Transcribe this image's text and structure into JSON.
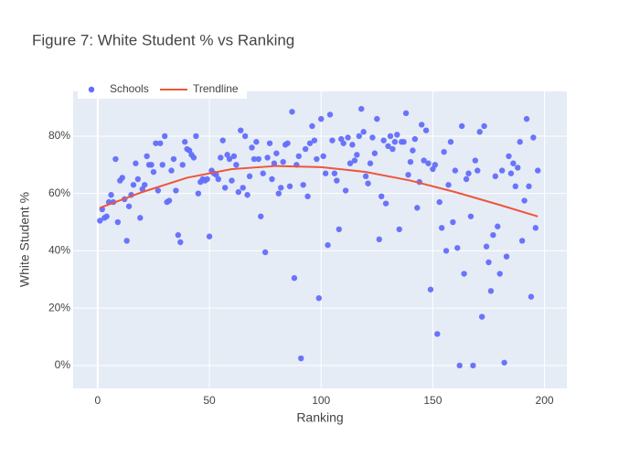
{
  "chart_data": {
    "type": "scatter",
    "title": "Figure 7: White Student % vs Ranking",
    "xlabel": "Ranking",
    "ylabel": "White Student %",
    "xlim": [
      -11,
      210
    ],
    "ylim": [
      -8,
      95.6
    ],
    "xticks": [
      0,
      50,
      100,
      150,
      200
    ],
    "yticks": [
      {
        "value": 0,
        "label": "0%"
      },
      {
        "value": 20,
        "label": "20%"
      },
      {
        "value": 40,
        "label": "40%"
      },
      {
        "value": 60,
        "label": "60%"
      },
      {
        "value": 80,
        "label": "80%"
      }
    ],
    "grid": true,
    "legend": "top-left",
    "series": [
      {
        "name": "Schools",
        "type": "scatter",
        "color": "#636efa",
        "x": [
          1,
          2,
          3,
          4,
          5,
          6,
          7,
          8,
          9,
          10,
          11,
          12,
          13,
          14,
          15,
          16,
          17,
          18,
          19,
          20,
          21,
          22,
          23,
          24,
          25,
          26,
          27,
          28,
          29,
          30,
          31,
          32,
          33,
          34,
          35,
          36,
          37,
          38,
          39,
          40,
          41,
          42,
          43,
          44,
          45,
          46,
          47,
          48,
          49,
          50,
          51,
          52,
          53,
          54,
          55,
          56,
          57,
          58,
          59,
          60,
          61,
          62,
          63,
          64,
          65,
          66,
          67,
          68,
          69,
          70,
          71,
          72,
          73,
          74,
          75,
          76,
          77,
          78,
          79,
          80,
          81,
          82,
          83,
          84,
          85,
          86,
          87,
          88,
          89,
          90,
          91,
          92,
          93,
          94,
          95,
          96,
          97,
          98,
          99,
          100,
          101,
          102,
          103,
          104,
          105,
          106,
          107,
          108,
          109,
          110,
          111,
          112,
          113,
          114,
          115,
          116,
          117,
          118,
          119,
          120,
          121,
          122,
          123,
          124,
          125,
          126,
          127,
          128,
          129,
          130,
          131,
          132,
          133,
          134,
          135,
          136,
          137,
          138,
          139,
          140,
          141,
          142,
          143,
          144,
          145,
          146,
          147,
          148,
          149,
          150,
          151,
          152,
          153,
          154,
          155,
          156,
          157,
          158,
          159,
          160,
          161,
          162,
          163,
          164,
          165,
          166,
          167,
          168,
          169,
          170,
          171,
          172,
          173,
          174,
          175,
          176,
          177,
          178,
          179,
          180,
          181,
          182,
          183,
          184,
          185,
          186,
          187,
          188,
          189,
          190,
          191,
          192,
          193,
          194,
          195,
          196,
          197
        ],
        "values": [
          50.5,
          54.5,
          51.5,
          52,
          57,
          59.5,
          57,
          72,
          50,
          64.5,
          65.5,
          58,
          43.5,
          55.5,
          59.5,
          63,
          70.5,
          65,
          51.5,
          61.5,
          63,
          73,
          70,
          70,
          67.5,
          77.5,
          61,
          77.5,
          70,
          80,
          57,
          57.5,
          68,
          72,
          61,
          45.5,
          43,
          70,
          78,
          75.5,
          75,
          73.5,
          72.5,
          80,
          60,
          64,
          65,
          64.5,
          65,
          45,
          68,
          67,
          66.5,
          65,
          72.5,
          78.5,
          62,
          73.5,
          72,
          64.5,
          73,
          70,
          60.5,
          82,
          62,
          80,
          59.5,
          66,
          76,
          72,
          78,
          72,
          52,
          67,
          39.5,
          72.5,
          77.5,
          65,
          70.5,
          74,
          60,
          62,
          71,
          77,
          77.5,
          62.5,
          88.5,
          30.5,
          70,
          73,
          2.5,
          63,
          75.5,
          59,
          77.5,
          83.5,
          78.5,
          72,
          23.5,
          86,
          73,
          67,
          42,
          87.5,
          78.5,
          67,
          64.5,
          47.5,
          79,
          77.5,
          61,
          79.5,
          70.5,
          77,
          71.5,
          73.5,
          80,
          89.5,
          81.5,
          66,
          63.5,
          70.5,
          79.5,
          74,
          86,
          44,
          59,
          78.5,
          56.5,
          76.5,
          80,
          75.5,
          78,
          80.5,
          47.5,
          78,
          78,
          88,
          66.5,
          71,
          75,
          79,
          55,
          64,
          84,
          71.5,
          82,
          70.5,
          26.5,
          68.5,
          70,
          11,
          57,
          48,
          74.5,
          40,
          63,
          78,
          50,
          68,
          41,
          0,
          83.5,
          32,
          65,
          67,
          52,
          0,
          71.5,
          68,
          81.5,
          17,
          83.5,
          41.5,
          36,
          26,
          45.5,
          66,
          48.5,
          32,
          68,
          1,
          38,
          73,
          67,
          70.5,
          62.5,
          69,
          78,
          43.5,
          57.5,
          86,
          62.5,
          24,
          79.5,
          48,
          68
        ]
      },
      {
        "name": "Trendline",
        "type": "line",
        "color": "#EF553B",
        "x": [
          1,
          20,
          40,
          60,
          80,
          100,
          120,
          140,
          160,
          180,
          197
        ],
        "values": [
          55,
          60.5,
          65.5,
          68.5,
          69.6,
          69.2,
          67.5,
          64.5,
          60.5,
          56,
          52
        ]
      }
    ]
  }
}
